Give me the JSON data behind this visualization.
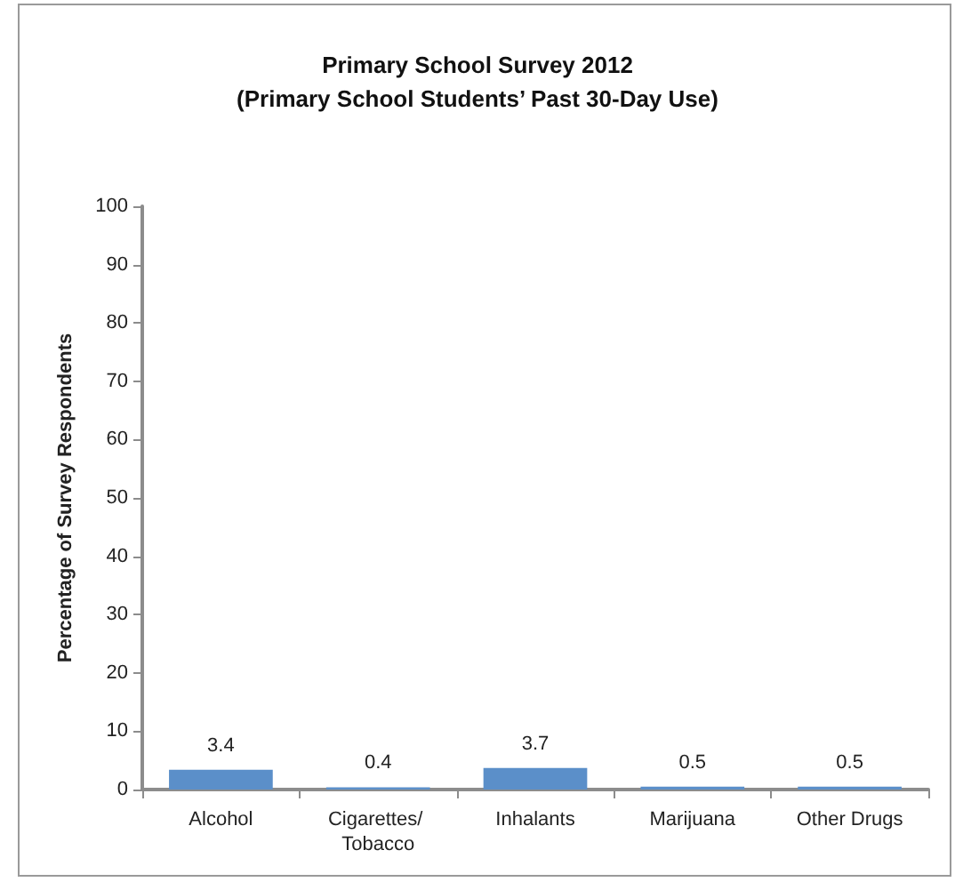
{
  "chart_data": {
    "type": "bar",
    "title": "Primary School Survey 2012\n(Primary School Students’ Past 30-Day Use)",
    "ylabel": "Percentage of Survey Respondents",
    "categories": [
      "Alcohol",
      "Cigarettes/ Tobacco",
      "Inhalants",
      "Marijuana",
      "Other Drugs"
    ],
    "values": [
      3.4,
      0.4,
      3.7,
      0.5,
      0.5
    ],
    "color": "#5b8fc9",
    "ylim": [
      0,
      100
    ],
    "yticks": [
      0,
      10,
      20,
      30,
      40,
      50,
      60,
      70,
      80,
      90,
      100
    ],
    "grid": false,
    "data_labels": true
  }
}
